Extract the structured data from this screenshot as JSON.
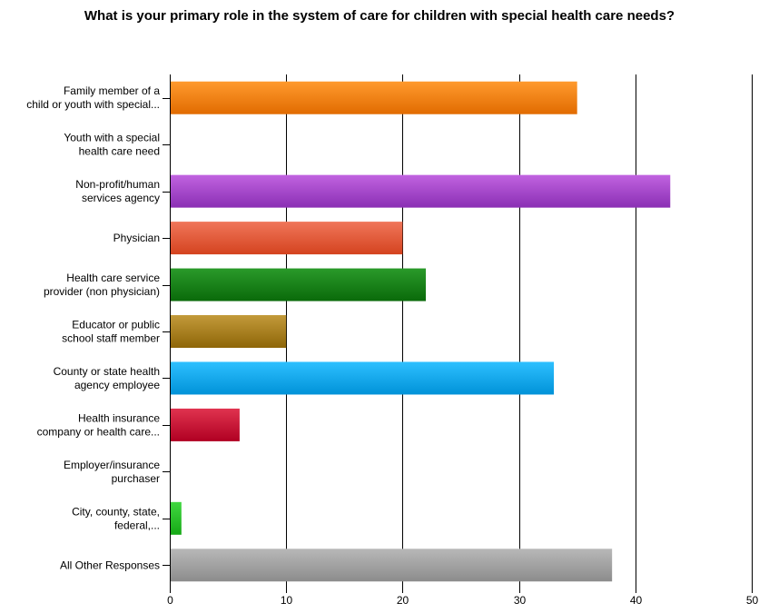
{
  "chart_data": {
    "type": "bar",
    "orientation": "horizontal",
    "title": "What is your primary role in the system of care for children with special health care needs?",
    "xlabel": "",
    "ylabel": "",
    "xlim": [
      0,
      50
    ],
    "xticks": [
      0,
      10,
      20,
      30,
      40,
      50
    ],
    "grid": "vertical lines",
    "legend": "none",
    "categories": [
      [
        "Family member of a",
        "child or youth with special..."
      ],
      [
        "Youth with a special",
        "health care need"
      ],
      [
        "Non-profit/human",
        "services agency"
      ],
      [
        "Physician"
      ],
      [
        "Health care service",
        "provider (non physician)"
      ],
      [
        "Educator or public",
        "school staff member"
      ],
      [
        "County or state health",
        "agency employee"
      ],
      [
        "Health insurance",
        "company or health care..."
      ],
      [
        "Employer/insurance",
        "purchaser"
      ],
      [
        "City, county, state,",
        "federal,..."
      ],
      [
        "All Other Responses"
      ]
    ],
    "values": [
      35,
      0,
      43,
      20,
      22,
      10,
      33,
      6,
      0,
      1,
      38
    ],
    "colors": [
      [
        "#ff9a2e",
        "#e16b00"
      ],
      [
        "#cccccc",
        "#999999"
      ],
      [
        "#c163e0",
        "#8a2fb4"
      ],
      [
        "#f0765a",
        "#d4431f"
      ],
      [
        "#2a9a2a",
        "#0a6a0a"
      ],
      [
        "#c39a3a",
        "#8e6608"
      ],
      [
        "#2ec0ff",
        "#0092d8"
      ],
      [
        "#e0334f",
        "#b00022"
      ],
      [
        "#cccccc",
        "#999999"
      ],
      [
        "#40d840",
        "#16a816"
      ],
      [
        "#b8b8b8",
        "#8c8c8c"
      ]
    ]
  }
}
